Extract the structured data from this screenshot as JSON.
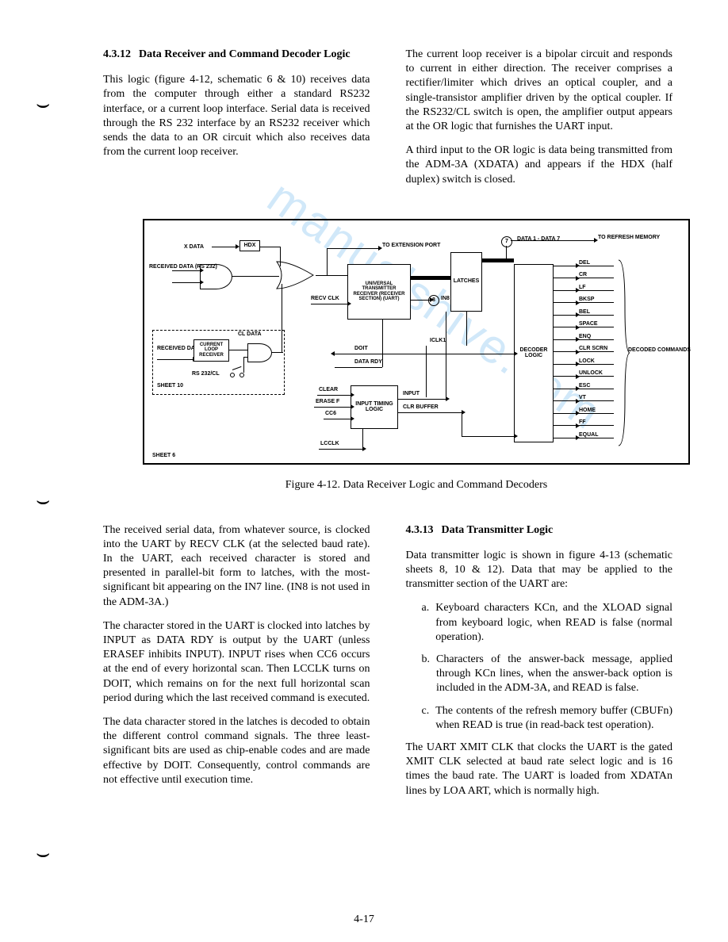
{
  "section1": {
    "number": "4.3.12",
    "title": "Data Receiver and Command Decoder Logic",
    "p1": "This logic (figure 4-12, schematic 6 & 10) receives data from the computer through either a standard RS232 interface, or a current loop interface. Serial data is received through the RS 232 interface by an RS232 receiver which sends the data to an OR circuit which also receives data from the current loop receiver.",
    "p2_right": "The current loop receiver is a bipolar circuit and responds to current in either direction. The receiver comprises a rectifier/limiter which drives an optical coupler, and a single-transistor amplifier driven by the optical coupler. If the RS232/CL switch is open, the amplifier output appears at the OR logic that furnishes the UART input.",
    "p3_right": "A third input to the OR logic is data being transmitted from the ADM-3A (XDATA) and appears if the HDX (half duplex) switch is closed."
  },
  "figure": {
    "caption": "Figure 4-12. Data Receiver Logic and Command Decoders",
    "labels": {
      "xdata": "X DATA",
      "hdx": "HDX",
      "to_ext": "TO EXTENSION PORT",
      "received_data_rs232": "RECEIVED DATA (RS 232)",
      "uart": "UNIVERSAL TRANSMITTER RECEIVER (RECEIVER SECTION) (UART)",
      "recv_clk": "RECV CLK",
      "latches": "LATCHES",
      "data1_7": "DATA 1 - DATA 7",
      "to_refresh": "TO REFRESH MEMORY",
      "circ7": "7",
      "circ8": "8",
      "in8": "IN8",
      "decoder": "DECODER LOGIC",
      "doit": "DOIT",
      "data_rdy": "DATA RDY",
      "iclk1": "ICLK1",
      "clear": "CLEAR",
      "erasef": "ERASE F",
      "cc6": "CC6",
      "lcclk": "LCCLK",
      "itl": "INPUT TIMING LOGIC",
      "input": "INPUT",
      "clr_buffer": "CLR BUFFER",
      "received_data_cl": "RECEIVED DATA",
      "clr_box": "CURRENT LOOP RECEIVER",
      "rs232cl_sw": "RS 232/CL",
      "cl_data": "CL DATA",
      "sheet10": "SHEET 10",
      "sheet6": "SHEET 6",
      "decoded_cmds": "DECODED COMMANDS",
      "outputs": [
        "DEL",
        "CR",
        "LF",
        "BKSP",
        "BEL",
        "SPACE",
        "ENQ",
        "CLR SCRN",
        "LOCK",
        "UNLOCK",
        "ESC",
        "VT",
        "HOME",
        "FF",
        "EQUAL"
      ]
    }
  },
  "lower_left": {
    "p1": "The received serial data, from whatever source, is clocked into the UART by RECV CLK (at the selected baud rate). In the UART, each received character is stored and presented in parallel-bit form to latches, with the most-significant bit appearing on the IN7 line. (IN8 is not used in the ADM-3A.)",
    "p2": "The character stored in the UART is clocked into latches by INPUT as DATA RDY is output by the UART (unless ERASEF inhibits INPUT). INPUT rises when CC6 occurs at the end of every horizontal scan. Then LCCLK turns on DOIT, which remains on for the next full horizontal scan period during which the last received command is executed.",
    "p3": "The data character stored in the latches is decoded to obtain the different control command signals. The three least-significant bits are used as chip-enable codes and are made effective by DOIT. Consequently, control commands are not effective until execution time."
  },
  "section2": {
    "number": "4.3.13",
    "title": "Data Transmitter Logic",
    "p1": "Data transmitter logic is shown in figure 4-13 (schematic sheets 8, 10 & 12). Data that may be applied to the transmitter section of the UART are:",
    "items": [
      {
        "m": "a.",
        "t": "Keyboard characters KCn, and the XLOAD signal from keyboard logic, when READ is false (normal operation)."
      },
      {
        "m": "b.",
        "t": "Characters of the answer-back message, applied through KCn lines, when the answer-back option is included in the ADM-3A, and READ is false."
      },
      {
        "m": "c.",
        "t": "The contents of the refresh memory buffer (CBUFn) when READ is true (in read-back test operation)."
      }
    ],
    "p2": "The UART XMIT CLK that clocks the UART is the gated XMIT CLK selected at baud rate select logic and is 16 times the baud rate. The UART is loaded from XDATAn lines by LOA ART, which is normally high."
  },
  "page_number": "4-17",
  "watermark": "manualshive.com"
}
